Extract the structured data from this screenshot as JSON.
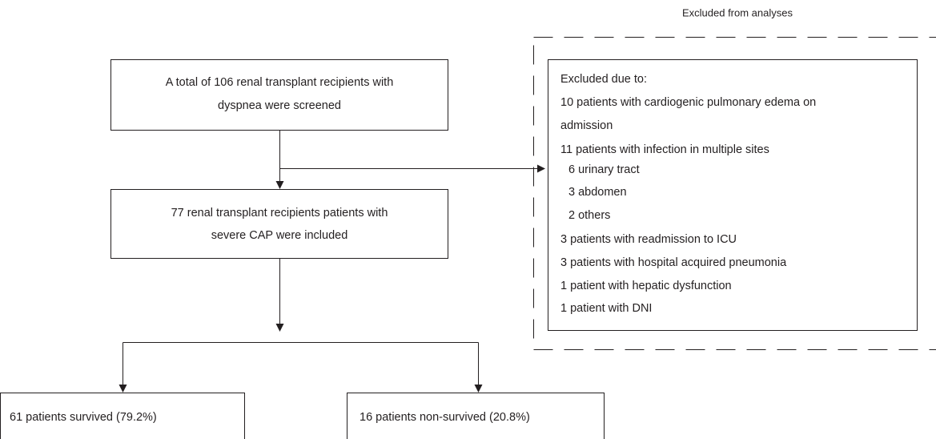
{
  "header": {
    "excluded_title": "Excluded from analyses"
  },
  "nodes": [
    {
      "lines": [
        "A total of 106 renal transplant recipients with",
        "dyspnea were screened"
      ]
    },
    {
      "lines": [
        "77 renal transplant recipients patients with",
        "severe CAP were included"
      ]
    },
    {
      "lines": [
        "61 patients survived (79.2%)"
      ]
    },
    {
      "lines": [
        "16 patients non-survived (20.8%)"
      ]
    }
  ],
  "excluded": {
    "lines": [
      "Excluded due to:",
      "10 patients with cardiogenic pulmonary edema on",
      "admission",
      "11 patients with infection in multiple sites",
      "6 urinary tract",
      "3 abdomen",
      "2 others",
      "3 patients with readmission to ICU",
      "3 patients with hospital acquired pneumonia",
      "1 patient with hepatic dysfunction",
      "1 patient with DNI"
    ]
  }
}
